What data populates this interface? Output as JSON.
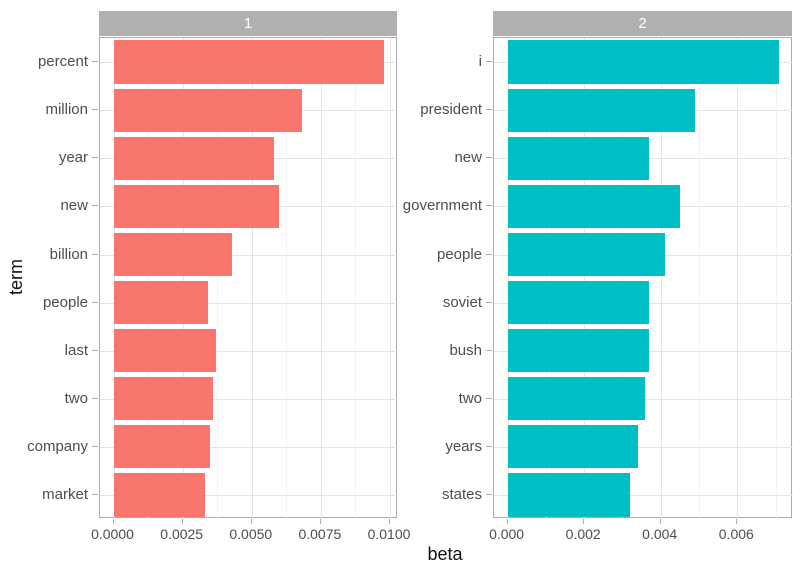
{
  "chart_data": {
    "type": "bar",
    "orientation": "horizontal",
    "title": "",
    "xlabel": "beta",
    "ylabel": "term",
    "grid": true,
    "legend": false,
    "facet_layout": "two panels side by side, shared x-axis title",
    "facets": [
      {
        "label": "1",
        "bar_color": "#F8766D",
        "categories": [
          "percent",
          "million",
          "year",
          "new",
          "billion",
          "people",
          "last",
          "two",
          "company",
          "market"
        ],
        "values": [
          0.0098,
          0.0068,
          0.0058,
          0.006,
          0.0043,
          0.0034,
          0.0037,
          0.0036,
          0.0035,
          0.0033
        ],
        "xticks": [
          0,
          0.0025,
          0.005,
          0.0075,
          0.01
        ],
        "xtick_labels": [
          "0.0000",
          "0.0025",
          "0.0050",
          "0.0075",
          "0.0100"
        ],
        "xlim_data": [
          0,
          0.0098
        ]
      },
      {
        "label": "2",
        "bar_color": "#00BFC4",
        "categories": [
          "i",
          "president",
          "new",
          "government",
          "people",
          "soviet",
          "bush",
          "two",
          "years",
          "states"
        ],
        "values": [
          0.0071,
          0.0049,
          0.0037,
          0.0045,
          0.0041,
          0.0037,
          0.0037,
          0.0036,
          0.0034,
          0.0032
        ],
        "xticks": [
          0,
          0.002,
          0.004,
          0.006
        ],
        "xtick_labels": [
          "0.000",
          "0.002",
          "0.004",
          "0.006"
        ],
        "xlim_data": [
          0,
          0.0071
        ]
      }
    ],
    "colors": {
      "strip_bg": "#B0B0B0",
      "strip_text": "#FFFFFF",
      "panel_border": "#ABABAB",
      "grid_major": "#E4E4E4",
      "grid_minor": "#F2F2F2",
      "axis_text": "#4D4D4D",
      "tick_mark": "#ABABAB",
      "axis_title_text": "#111111"
    }
  }
}
